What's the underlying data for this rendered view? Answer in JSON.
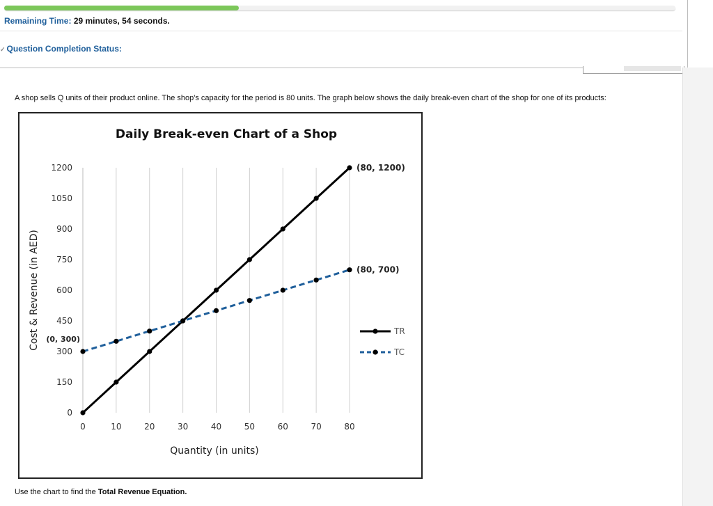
{
  "status": {
    "progress_percent": 35,
    "remaining_label": "Remaining Time:",
    "remaining_value": "29 minutes, 54 seconds.",
    "completion_label": "Question Completion Status:"
  },
  "question": {
    "text": "A shop sells Q units of their product online. The shop's capacity for the period is 80 units. The graph below shows the daily break-even chart of the shop for one of its products:",
    "instruction_prefix": "Use the chart to find the ",
    "instruction_bold": "Total Revenue Equation."
  },
  "colors": {
    "tr_line": "#000000",
    "tc_line": "#1f5f9b",
    "accent": "#1f5f9b",
    "progress": "#7cc75a"
  },
  "chart_data": {
    "type": "line",
    "title": "Daily Break-even Chart of a Shop",
    "xlabel": "Quantity (in units)",
    "ylabel": "Cost & Revenue (in AED)",
    "xlim": [
      0,
      80
    ],
    "ylim": [
      0,
      1200
    ],
    "x_ticks": [
      0,
      10,
      20,
      30,
      40,
      50,
      60,
      70,
      80
    ],
    "y_ticks": [
      0,
      150,
      300,
      450,
      600,
      750,
      900,
      1050,
      1200
    ],
    "grid": "vertical",
    "legend_position": "right",
    "series": [
      {
        "name": "TR",
        "style": "solid",
        "color": "#000000",
        "x": [
          0,
          10,
          20,
          30,
          40,
          50,
          60,
          70,
          80
        ],
        "y": [
          0,
          150,
          300,
          450,
          600,
          750,
          900,
          1050,
          1200
        ]
      },
      {
        "name": "TC",
        "style": "dashed",
        "color": "#1f5f9b",
        "x": [
          0,
          10,
          20,
          30,
          40,
          50,
          60,
          70,
          80
        ],
        "y": [
          300,
          350,
          400,
          450,
          500,
          550,
          600,
          650,
          700
        ]
      }
    ],
    "annotations": [
      {
        "text": "(80, 1200)",
        "x": 80,
        "y": 1200,
        "placement": "right"
      },
      {
        "text": "(80, 700)",
        "x": 80,
        "y": 700,
        "placement": "right"
      },
      {
        "text": "(0, 300)",
        "x": 0,
        "y": 300,
        "placement": "left"
      }
    ]
  }
}
